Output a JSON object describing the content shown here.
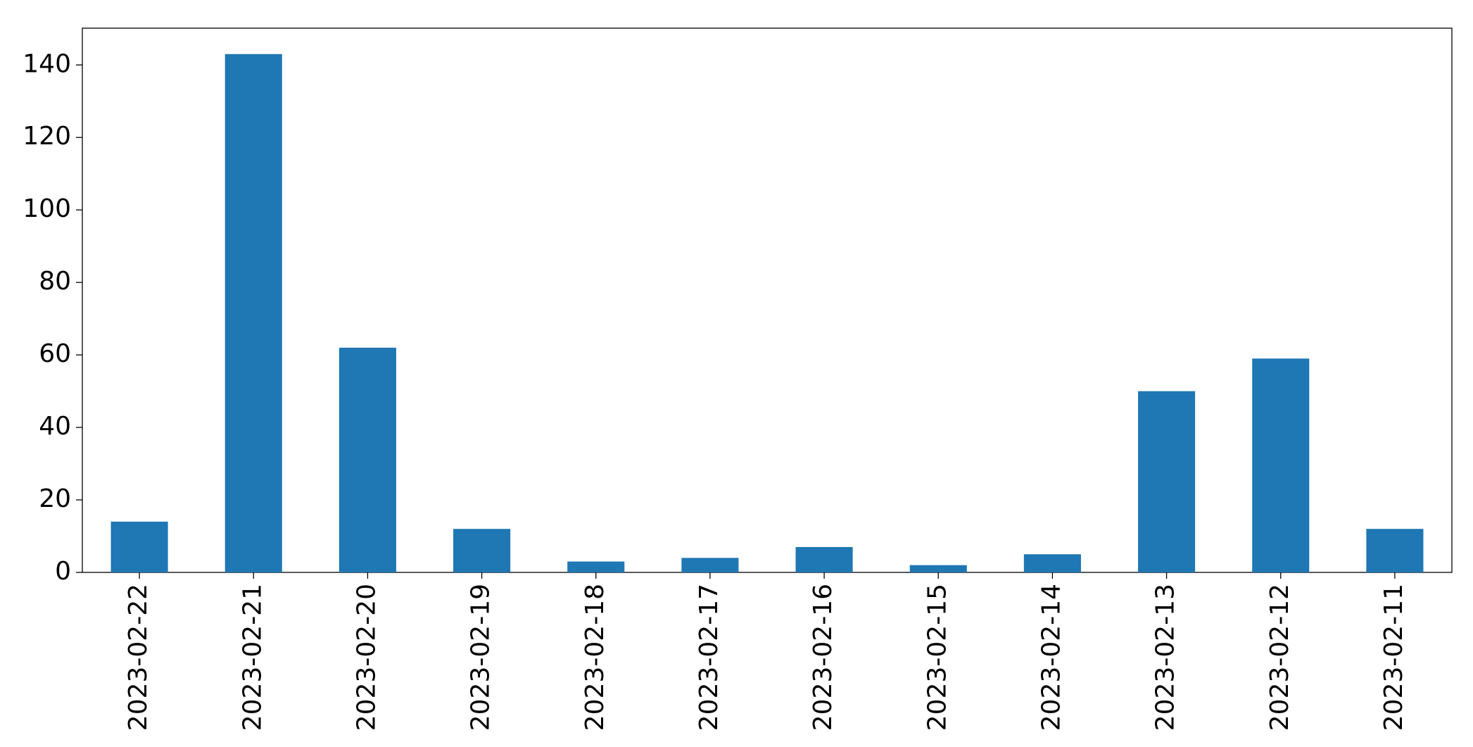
{
  "chart_data": {
    "type": "bar",
    "categories": [
      "2023-02-22",
      "2023-02-21",
      "2023-02-20",
      "2023-02-19",
      "2023-02-18",
      "2023-02-17",
      "2023-02-16",
      "2023-02-15",
      "2023-02-14",
      "2023-02-13",
      "2023-02-12",
      "2023-02-11"
    ],
    "values": [
      14,
      143,
      62,
      12,
      3,
      4,
      7,
      2,
      5,
      50,
      59,
      12
    ],
    "color": "#1f77b4",
    "ylim": [
      0,
      150.15
    ],
    "yticks": [
      0,
      20,
      40,
      60,
      80,
      100,
      120,
      140
    ],
    "grid": false
  }
}
